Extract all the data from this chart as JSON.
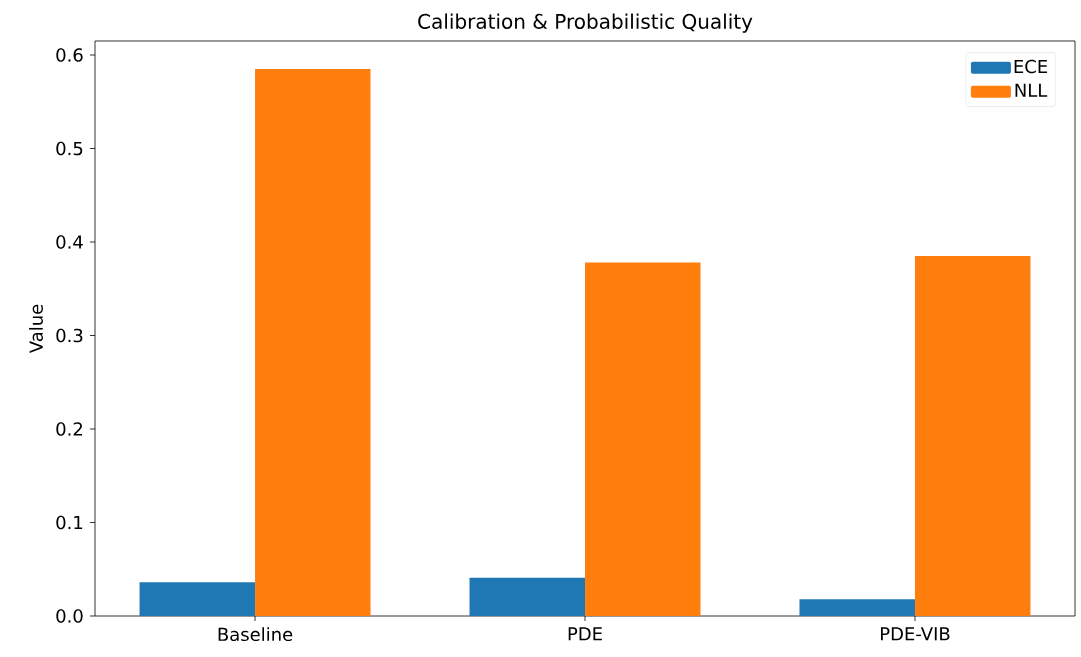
{
  "chart_data": {
    "type": "bar",
    "title": "Calibration & Probabilistic Quality",
    "ylabel": "Value",
    "categories": [
      "Baseline",
      "PDE",
      "PDE-VIB"
    ],
    "series": [
      {
        "name": "ECE",
        "color": "#1f77b4",
        "values": [
          0.036,
          0.041,
          0.018
        ]
      },
      {
        "name": "NLL",
        "color": "#ff7f0e",
        "values": [
          0.585,
          0.378,
          0.385
        ]
      }
    ],
    "ylim": [
      0.0,
      0.615
    ],
    "yticks": [
      {
        "value": 0,
        "label": "0.0"
      },
      0.1,
      0.2,
      0.3,
      0.4,
      0.5,
      0.6
    ],
    "legend": "top right"
  }
}
